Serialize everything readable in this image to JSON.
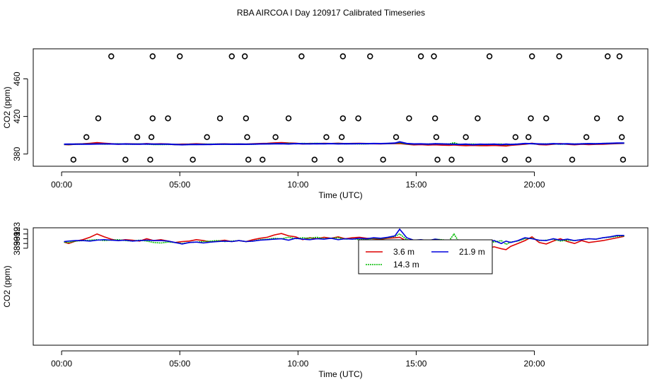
{
  "title": "RBA AIRCOA I  Day 120917  Calibrated Timeseries",
  "colors": {
    "series_red": "#dd0000",
    "series_green": "#00bb00",
    "series_blue": "#0000dd",
    "axis": "#000000"
  },
  "chart_data": [
    {
      "type": "scatter",
      "xlabel": "Time (UTC)",
      "ylabel": "CO2 (ppm)",
      "xlim": [
        -1.2,
        24.8
      ],
      "ylim": [
        367,
        492
      ],
      "x_ticks": [
        0,
        5,
        10,
        15,
        20
      ],
      "x_tick_labels": [
        "00:00",
        "05:00",
        "10:00",
        "15:00",
        "20:00"
      ],
      "y_ticks": [
        380,
        420,
        460
      ],
      "y_tick_labels": [
        "380",
        "420",
        "460"
      ],
      "outliers": {
        "x": [
          2.1,
          3.85,
          5.0,
          7.2,
          7.75,
          10.15,
          11.9,
          13.05,
          15.2,
          15.75,
          18.1,
          19.9,
          21.05,
          23.1,
          23.6,
          1.05,
          3.2,
          3.8,
          6.15,
          7.85,
          9.05,
          11.2,
          11.85,
          14.15,
          15.85,
          17.1,
          19.2,
          19.75,
          22.2,
          23.7,
          1.55,
          3.85,
          4.5,
          6.7,
          7.8,
          9.6,
          11.9,
          12.55,
          14.7,
          15.8,
          17.6,
          19.85,
          20.5,
          22.65,
          23.65,
          0.5,
          2.7,
          3.75,
          5.55,
          7.9,
          8.5,
          10.7,
          11.8,
          13.6,
          15.9,
          16.5,
          18.75,
          19.75,
          21.6,
          23.75
        ],
        "y": [
          484,
          484,
          484,
          484,
          484,
          484,
          484,
          484,
          484,
          484,
          484,
          484,
          484,
          484,
          484,
          398,
          398,
          398,
          398,
          398,
          398,
          398,
          398,
          398,
          398,
          398,
          398,
          398,
          398,
          398,
          418,
          418,
          418,
          418,
          418,
          418,
          418,
          418,
          418,
          418,
          418,
          418,
          418,
          418,
          418,
          374,
          374,
          374,
          374,
          374,
          374,
          374,
          374,
          374,
          374,
          374,
          374,
          374,
          374,
          374
        ]
      },
      "series": [
        {
          "values_ref": "lower.3.6 m",
          "values": []
        }
      ]
    },
    {
      "type": "line",
      "xlabel": "Time (UTC)",
      "ylabel": "CO2 (ppm)",
      "xlim": [
        -1.2,
        24.8
      ],
      "ylim": [
        368.6,
        393.3
      ],
      "x_ticks": [
        0,
        5,
        10,
        15,
        20
      ],
      "x_tick_labels": [
        "00:00",
        "05:00",
        "10:00",
        "15:00",
        "20:00"
      ],
      "y_ticks": [
        389,
        390,
        391,
        392,
        393
      ],
      "y_tick_labels": [
        "389",
        "390",
        "391",
        "392",
        "393"
      ],
      "legend": {
        "position": "top-center",
        "entries": [
          "3.6 m",
          "14.3 m",
          "21.9 m"
        ]
      },
      "x": [
        0.1,
        0.3,
        0.6,
        0.9,
        1.2,
        1.5,
        1.8,
        2.1,
        2.4,
        2.7,
        3.0,
        3.3,
        3.6,
        3.9,
        4.2,
        4.5,
        4.8,
        5.1,
        5.4,
        5.7,
        6.0,
        6.3,
        6.6,
        6.9,
        7.2,
        7.5,
        7.8,
        8.1,
        8.4,
        8.7,
        9.0,
        9.3,
        9.6,
        9.9,
        10.2,
        10.5,
        10.8,
        11.1,
        11.4,
        11.7,
        12.0,
        12.3,
        12.6,
        12.9,
        13.2,
        13.5,
        13.8,
        14.1,
        14.3,
        14.6,
        14.9,
        15.2,
        15.5,
        15.8,
        16.1,
        16.4,
        16.6,
        16.8,
        17.1,
        17.4,
        17.7,
        18.0,
        18.3,
        18.6,
        18.8,
        19.0,
        19.3,
        19.6,
        19.9,
        20.2,
        20.5,
        20.8,
        21.1,
        21.4,
        21.7,
        22.0,
        22.3,
        22.6,
        22.9,
        23.2,
        23.5,
        23.8
      ],
      "series": [
        {
          "name": "3.6 m",
          "color": "#dd0000",
          "values": [
            390.3,
            390.0,
            390.5,
            390.8,
            391.3,
            392.0,
            391.4,
            390.9,
            390.6,
            390.8,
            390.7,
            390.5,
            391.0,
            390.6,
            390.8,
            390.5,
            390.2,
            390.4,
            390.5,
            390.8,
            390.6,
            390.3,
            390.5,
            390.7,
            390.4,
            390.6,
            390.4,
            390.8,
            391.1,
            391.3,
            391.8,
            392.1,
            391.6,
            391.4,
            390.8,
            391.2,
            391.0,
            391.3,
            391.1,
            391.4,
            391.0,
            391.2,
            391.3,
            391.1,
            391.0,
            390.9,
            391.1,
            391.2,
            391.3,
            390.5,
            389.9,
            390.2,
            389.7,
            390.0,
            389.6,
            389.4,
            389.8,
            389.4,
            389.1,
            389.3,
            389.1,
            389.0,
            389.3,
            388.9,
            388.7,
            389.4,
            390.0,
            390.6,
            391.4,
            390.2,
            389.9,
            390.5,
            391.0,
            390.4,
            390.0,
            390.6,
            390.2,
            390.4,
            390.6,
            390.9,
            391.2,
            391.5
          ]
        },
        {
          "name": "14.3 m",
          "color": "#00bb00",
          "values": [
            390.3,
            390.2,
            390.5,
            390.6,
            390.7,
            390.8,
            390.6,
            390.7,
            390.8,
            390.6,
            390.5,
            390.7,
            390.5,
            390.2,
            390.1,
            390.3,
            390.2,
            390.0,
            390.2,
            390.3,
            390.4,
            390.5,
            390.6,
            390.4,
            390.5,
            390.6,
            390.4,
            390.5,
            390.8,
            390.9,
            391.1,
            391.0,
            391.3,
            391.0,
            391.2,
            391.1,
            391.3,
            391.0,
            391.1,
            391.2,
            390.9,
            391.0,
            390.8,
            390.9,
            391.1,
            391.0,
            391.2,
            391.5,
            392.0,
            390.8,
            390.6,
            390.7,
            390.5,
            390.9,
            390.8,
            390.6,
            392.0,
            390.4,
            390.2,
            390.6,
            390.0,
            390.5,
            390.3,
            390.6,
            389.8,
            390.3,
            390.5,
            391.0,
            391.1,
            390.6,
            390.7,
            390.9,
            390.5,
            390.7,
            390.6,
            390.8,
            391.0,
            390.9,
            391.2,
            391.3,
            391.5,
            391.6
          ]
        },
        {
          "name": "21.9 m",
          "color": "#0000dd",
          "values": [
            390.4,
            390.5,
            390.6,
            390.6,
            390.5,
            390.7,
            390.8,
            390.7,
            390.6,
            390.7,
            390.5,
            390.6,
            390.7,
            390.6,
            390.6,
            390.5,
            390.2,
            389.9,
            390.2,
            390.3,
            390.1,
            390.3,
            390.4,
            390.5,
            390.4,
            390.6,
            390.4,
            390.5,
            390.7,
            390.8,
            390.9,
            391.0,
            390.7,
            391.1,
            390.9,
            390.8,
            391.0,
            390.9,
            391.1,
            390.8,
            391.0,
            390.9,
            391.1,
            391.0,
            391.2,
            391.1,
            391.3,
            391.6,
            393.0,
            391.2,
            390.7,
            390.8,
            390.6,
            390.9,
            390.7,
            390.6,
            390.4,
            390.2,
            390.5,
            389.9,
            390.4,
            390.3,
            390.6,
            390.0,
            390.5,
            390.2,
            390.6,
            391.2,
            391.0,
            390.7,
            390.6,
            391.0,
            390.7,
            390.9,
            390.6,
            390.8,
            391.0,
            390.9,
            391.2,
            391.4,
            391.7,
            391.7
          ]
        }
      ]
    }
  ]
}
